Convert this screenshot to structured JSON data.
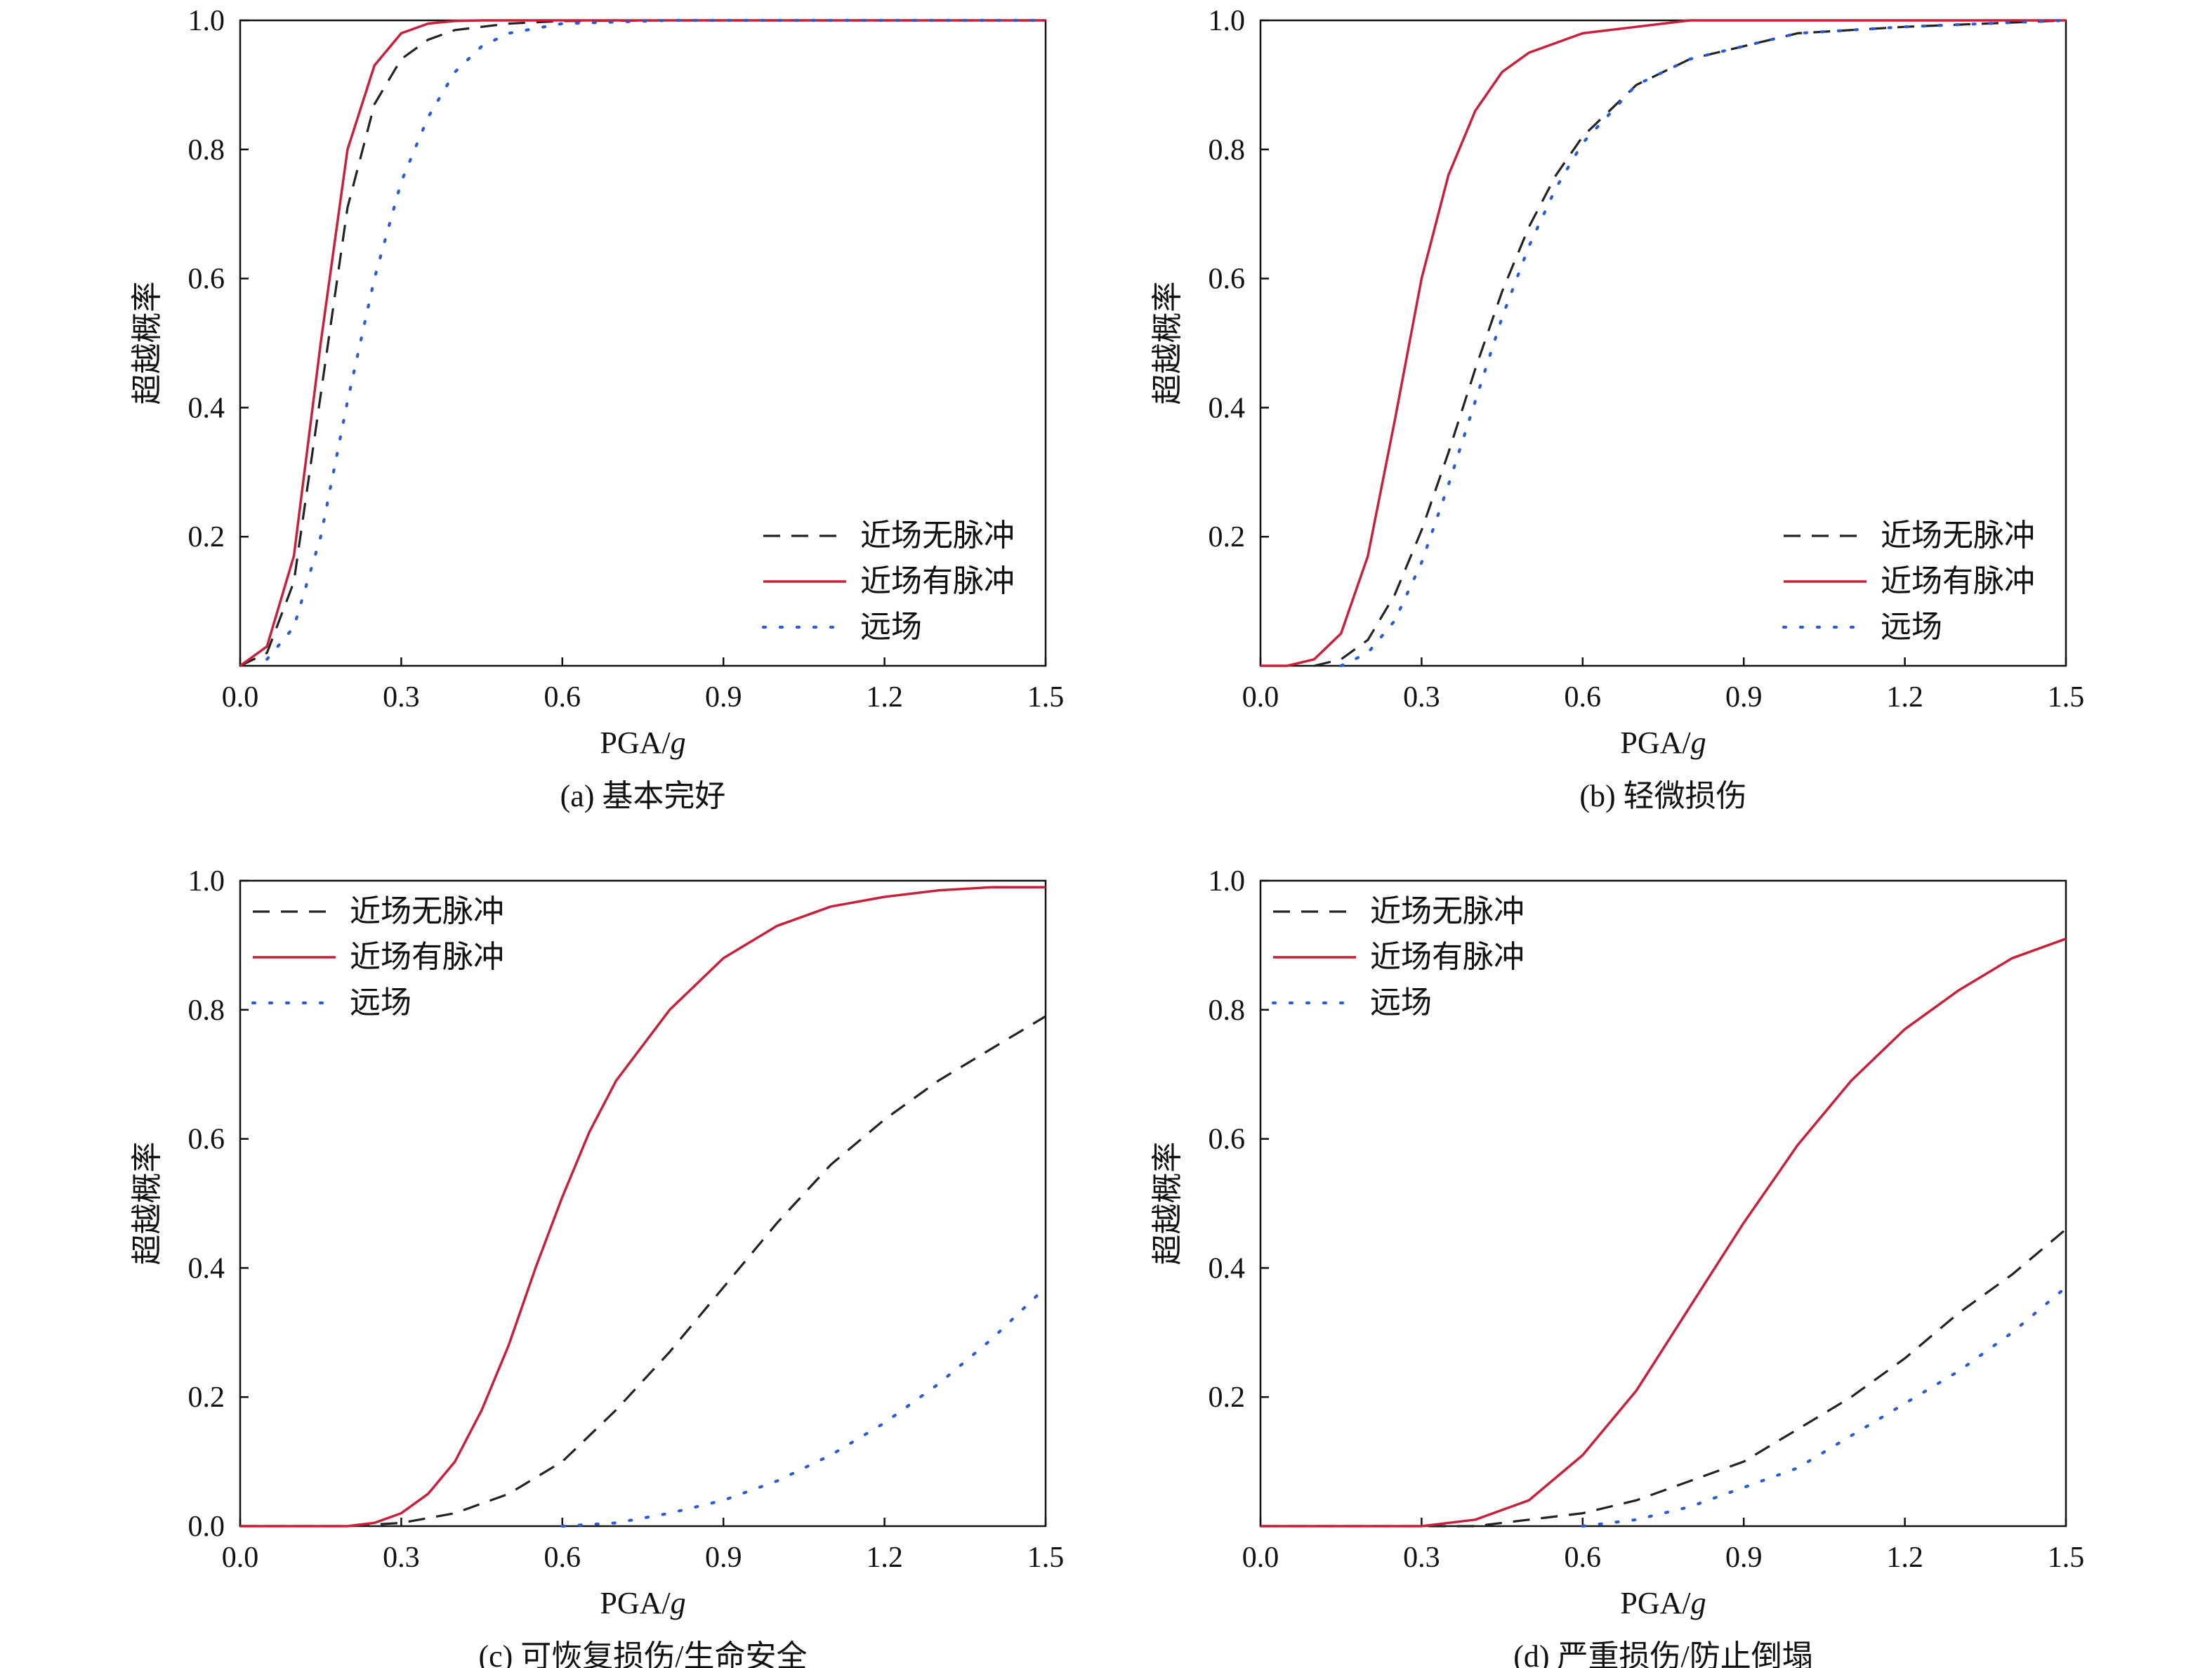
{
  "colors": {
    "near_no_pulse": "#222222",
    "near_pulse": "#c8203a",
    "far_field": "#2a5bd0",
    "axis": "#111111"
  },
  "chart_data": [
    {
      "type": "line",
      "caption": "(a) 基本完好",
      "xlabel": "PGA/g",
      "ylabel": "超越概率",
      "xlim": [
        0,
        1.5
      ],
      "ylim": [
        0,
        1
      ],
      "xticks": [
        "0.0",
        "0.3",
        "0.6",
        "0.9",
        "1.2",
        "1.5"
      ],
      "yticks": [
        "0.2",
        "0.4",
        "0.6",
        "0.8",
        "1.0"
      ],
      "legend_position": "bottom-right",
      "series": [
        {
          "name": "近场无脉冲",
          "style": "dashed",
          "x": [
            0.0,
            0.05,
            0.1,
            0.15,
            0.2,
            0.25,
            0.3,
            0.35,
            0.4,
            0.45,
            0.5,
            0.6,
            0.8,
            1.0,
            1.2,
            1.5
          ],
          "y": [
            0.0,
            0.02,
            0.13,
            0.42,
            0.71,
            0.87,
            0.94,
            0.97,
            0.985,
            0.99,
            0.995,
            0.999,
            1.0,
            1.0,
            1.0,
            1.0
          ]
        },
        {
          "name": "近场有脉冲",
          "style": "solid",
          "x": [
            0.0,
            0.05,
            0.1,
            0.15,
            0.2,
            0.25,
            0.3,
            0.35,
            0.4,
            0.45,
            0.5,
            0.6,
            0.8,
            1.0,
            1.2,
            1.5
          ],
          "y": [
            0.0,
            0.03,
            0.17,
            0.5,
            0.8,
            0.93,
            0.98,
            0.995,
            0.999,
            1.0,
            1.0,
            1.0,
            1.0,
            1.0,
            1.0,
            1.0
          ]
        },
        {
          "name": "远场",
          "style": "dotted",
          "x": [
            0.05,
            0.1,
            0.15,
            0.2,
            0.25,
            0.3,
            0.35,
            0.4,
            0.45,
            0.5,
            0.6,
            0.8,
            1.0,
            1.2,
            1.5
          ],
          "y": [
            0.01,
            0.06,
            0.2,
            0.41,
            0.6,
            0.75,
            0.85,
            0.92,
            0.96,
            0.98,
            0.995,
            1.0,
            1.0,
            1.0,
            1.0
          ]
        }
      ]
    },
    {
      "type": "line",
      "caption": "(b) 轻微损伤",
      "xlabel": "PGA/g",
      "ylabel": "超越概率",
      "xlim": [
        0,
        1.5
      ],
      "ylim": [
        0,
        1
      ],
      "xticks": [
        "0.0",
        "0.3",
        "0.6",
        "0.9",
        "1.2",
        "1.5"
      ],
      "yticks": [
        "0.2",
        "0.4",
        "0.6",
        "0.8",
        "1.0"
      ],
      "legend_position": "bottom-right",
      "series": [
        {
          "name": "近场无脉冲",
          "style": "dashed",
          "x": [
            0.1,
            0.15,
            0.2,
            0.25,
            0.3,
            0.35,
            0.4,
            0.45,
            0.5,
            0.55,
            0.6,
            0.7,
            0.8,
            0.9,
            1.0,
            1.2,
            1.5
          ],
          "y": [
            0.0,
            0.01,
            0.04,
            0.11,
            0.21,
            0.33,
            0.46,
            0.58,
            0.68,
            0.76,
            0.82,
            0.9,
            0.94,
            0.96,
            0.98,
            0.99,
            1.0
          ]
        },
        {
          "name": "近场有脉冲",
          "style": "solid",
          "x": [
            0.0,
            0.05,
            0.1,
            0.15,
            0.2,
            0.25,
            0.3,
            0.35,
            0.4,
            0.45,
            0.5,
            0.6,
            0.7,
            0.8,
            1.0,
            1.2,
            1.5
          ],
          "y": [
            0.0,
            0.0,
            0.01,
            0.05,
            0.17,
            0.38,
            0.6,
            0.76,
            0.86,
            0.92,
            0.95,
            0.98,
            0.99,
            1.0,
            1.0,
            1.0,
            1.0
          ]
        },
        {
          "name": "远场",
          "style": "dotted",
          "x": [
            0.15,
            0.2,
            0.25,
            0.3,
            0.35,
            0.4,
            0.45,
            0.5,
            0.55,
            0.6,
            0.7,
            0.8,
            0.9,
            1.0,
            1.2,
            1.5
          ],
          "y": [
            0.0,
            0.02,
            0.07,
            0.16,
            0.28,
            0.41,
            0.54,
            0.65,
            0.74,
            0.81,
            0.9,
            0.94,
            0.96,
            0.98,
            0.99,
            1.0
          ]
        }
      ]
    },
    {
      "type": "line",
      "caption": "(c) 可恢复损伤/生命安全",
      "xlabel": "PGA/g",
      "ylabel": "超越概率",
      "xlim": [
        0,
        1.5
      ],
      "ylim": [
        0,
        1
      ],
      "xticks": [
        "0.0",
        "0.3",
        "0.6",
        "0.9",
        "1.2",
        "1.5"
      ],
      "yticks": [
        "0.0",
        "0.2",
        "0.4",
        "0.6",
        "0.8",
        "1.0"
      ],
      "legend_position": "top-left",
      "series": [
        {
          "name": "近场无脉冲",
          "style": "dashed",
          "x": [
            0.0,
            0.2,
            0.3,
            0.4,
            0.5,
            0.6,
            0.7,
            0.8,
            0.9,
            1.0,
            1.1,
            1.2,
            1.3,
            1.4,
            1.5
          ],
          "y": [
            0.0,
            0.0,
            0.005,
            0.02,
            0.05,
            0.1,
            0.18,
            0.27,
            0.37,
            0.47,
            0.56,
            0.63,
            0.69,
            0.74,
            0.79
          ]
        },
        {
          "name": "近场有脉冲",
          "style": "solid",
          "x": [
            0.0,
            0.2,
            0.25,
            0.3,
            0.35,
            0.4,
            0.45,
            0.5,
            0.55,
            0.6,
            0.65,
            0.7,
            0.8,
            0.9,
            1.0,
            1.1,
            1.2,
            1.3,
            1.4,
            1.5
          ],
          "y": [
            0.0,
            0.0,
            0.005,
            0.02,
            0.05,
            0.1,
            0.18,
            0.28,
            0.4,
            0.51,
            0.61,
            0.69,
            0.8,
            0.88,
            0.93,
            0.96,
            0.975,
            0.985,
            0.99,
            0.99
          ]
        },
        {
          "name": "远场",
          "style": "dotted",
          "x": [
            0.6,
            0.7,
            0.8,
            0.9,
            1.0,
            1.1,
            1.2,
            1.3,
            1.4,
            1.5
          ],
          "y": [
            0.0,
            0.005,
            0.02,
            0.04,
            0.07,
            0.11,
            0.16,
            0.22,
            0.29,
            0.37
          ]
        }
      ]
    },
    {
      "type": "line",
      "caption": "(d) 严重损伤/防止倒塌",
      "xlabel": "PGA/g",
      "ylabel": "超越概率",
      "xlim": [
        0,
        1.5
      ],
      "ylim": [
        0,
        1
      ],
      "xticks": [
        "0.0",
        "0.3",
        "0.6",
        "0.9",
        "1.2",
        "1.5"
      ],
      "yticks": [
        "0.2",
        "0.4",
        "0.6",
        "0.8",
        "1.0"
      ],
      "legend_position": "top-left",
      "series": [
        {
          "name": "近场无脉冲",
          "style": "dashed",
          "x": [
            0.0,
            0.4,
            0.5,
            0.6,
            0.7,
            0.8,
            0.9,
            1.0,
            1.1,
            1.2,
            1.3,
            1.4,
            1.5
          ],
          "y": [
            0.0,
            0.0,
            0.01,
            0.02,
            0.04,
            0.07,
            0.1,
            0.15,
            0.2,
            0.26,
            0.33,
            0.39,
            0.46
          ]
        },
        {
          "name": "近场有脉冲",
          "style": "solid",
          "x": [
            0.0,
            0.3,
            0.4,
            0.5,
            0.6,
            0.7,
            0.8,
            0.9,
            1.0,
            1.1,
            1.2,
            1.3,
            1.4,
            1.5
          ],
          "y": [
            0.0,
            0.0,
            0.01,
            0.04,
            0.11,
            0.21,
            0.34,
            0.47,
            0.59,
            0.69,
            0.77,
            0.83,
            0.88,
            0.91
          ]
        },
        {
          "name": "远场",
          "style": "dotted",
          "x": [
            0.6,
            0.7,
            0.8,
            0.9,
            1.0,
            1.1,
            1.2,
            1.3,
            1.4,
            1.5
          ],
          "y": [
            0.0,
            0.01,
            0.03,
            0.06,
            0.09,
            0.14,
            0.19,
            0.24,
            0.3,
            0.37
          ]
        }
      ]
    }
  ]
}
